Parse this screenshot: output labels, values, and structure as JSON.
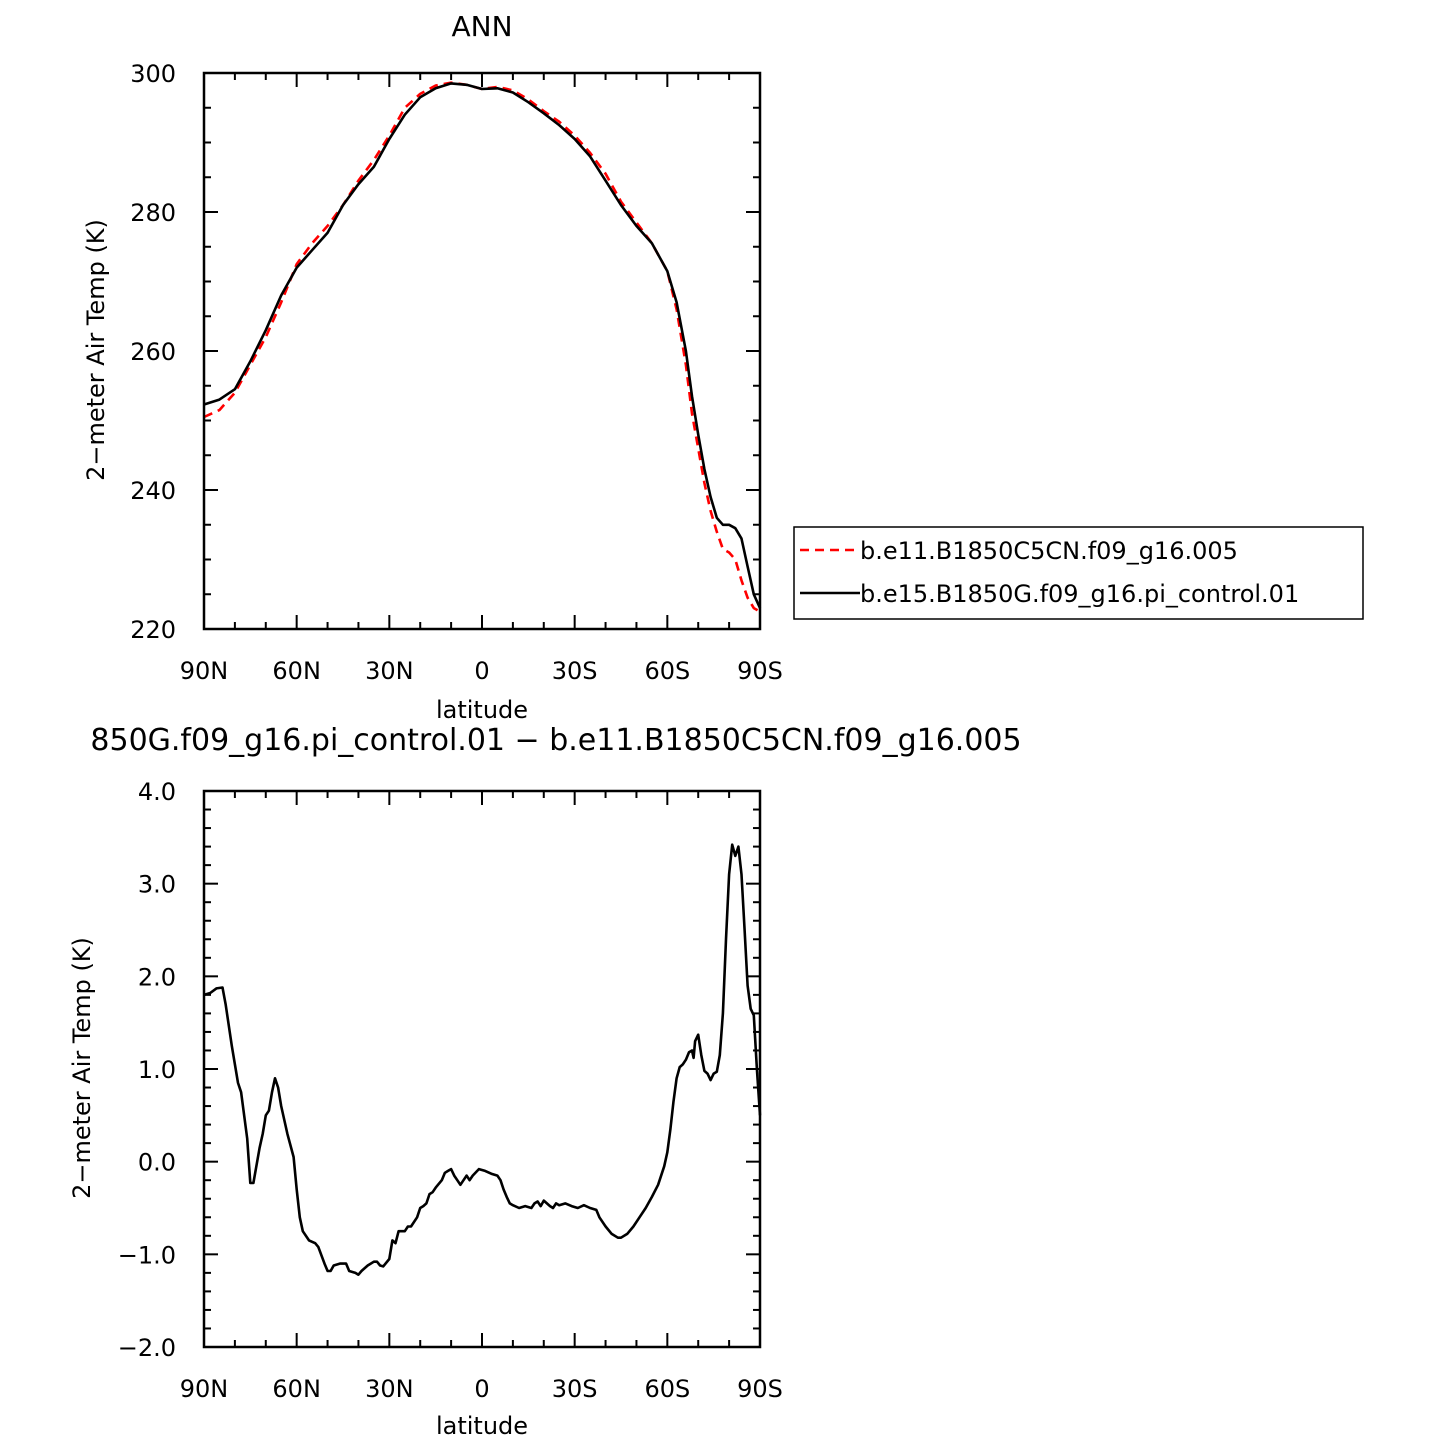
{
  "chart_data": [
    {
      "type": "line",
      "title": "ANN",
      "xlabel": "latitude",
      "ylabel": "2−meter Air Temp (K)",
      "xlim": [
        90,
        -90
      ],
      "ylim": [
        220,
        300
      ],
      "x_ticks": [
        {
          "value": 90,
          "label": "90N"
        },
        {
          "value": 60,
          "label": "60N"
        },
        {
          "value": 30,
          "label": "30N"
        },
        {
          "value": 0,
          "label": "0"
        },
        {
          "value": -30,
          "label": "30S"
        },
        {
          "value": -60,
          "label": "60S"
        },
        {
          "value": -90,
          "label": "90S"
        }
      ],
      "y_ticks": [
        {
          "value": 300,
          "label": "300"
        },
        {
          "value": 280,
          "label": "280"
        },
        {
          "value": 260,
          "label": "260"
        },
        {
          "value": 240,
          "label": "240"
        },
        {
          "value": 220,
          "label": "220"
        }
      ],
      "legend_position": "right",
      "series": [
        {
          "name": "b.e11.B1850C5CN.f09_g16.005",
          "color": "#ff0000",
          "style": "dashed",
          "points": [
            [
              90,
              250.5
            ],
            [
              85,
              251.5
            ],
            [
              80,
              254
            ],
            [
              75,
              258
            ],
            [
              70,
              262
            ],
            [
              65,
              267
            ],
            [
              60,
              272.5
            ],
            [
              55,
              275.5
            ],
            [
              50,
              278
            ],
            [
              45,
              281
            ],
            [
              40,
              284.5
            ],
            [
              35,
              287.5
            ],
            [
              30,
              291
            ],
            [
              25,
              295
            ],
            [
              20,
              297
            ],
            [
              15,
              298.2
            ],
            [
              10,
              298.6
            ],
            [
              5,
              298.3
            ],
            [
              0,
              297.7
            ],
            [
              -5,
              298
            ],
            [
              -10,
              297.5
            ],
            [
              -15,
              296.2
            ],
            [
              -20,
              294.5
            ],
            [
              -25,
              293
            ],
            [
              -30,
              291
            ],
            [
              -35,
              288.5
            ],
            [
              -40,
              285.5
            ],
            [
              -45,
              281.5
            ],
            [
              -50,
              278.5
            ],
            [
              -55,
              275.5
            ],
            [
              -60,
              271.5
            ],
            [
              -63,
              266
            ],
            [
              -66,
              258
            ],
            [
              -68,
              251
            ],
            [
              -70,
              246
            ],
            [
              -72,
              241
            ],
            [
              -74,
              237
            ],
            [
              -76,
              234
            ],
            [
              -78,
              231.5
            ],
            [
              -80,
              231
            ],
            [
              -82,
              230
            ],
            [
              -84,
              227
            ],
            [
              -86,
              224.5
            ],
            [
              -88,
              223
            ],
            [
              -90,
              222.5
            ]
          ]
        },
        {
          "name": "b.e15.B1850G.f09_g16.pi_control.01",
          "color": "#000000",
          "style": "solid",
          "points": [
            [
              90,
              252.3
            ],
            [
              85,
              253
            ],
            [
              80,
              254.5
            ],
            [
              75,
              258.5
            ],
            [
              70,
              263
            ],
            [
              65,
              268
            ],
            [
              60,
              272
            ],
            [
              55,
              274.5
            ],
            [
              50,
              277
            ],
            [
              45,
              281
            ],
            [
              40,
              284
            ],
            [
              35,
              286.5
            ],
            [
              30,
              290.5
            ],
            [
              25,
              294
            ],
            [
              20,
              296.5
            ],
            [
              15,
              297.8
            ],
            [
              10,
              298.5
            ],
            [
              5,
              298.3
            ],
            [
              0,
              297.7
            ],
            [
              -5,
              297.8
            ],
            [
              -10,
              297.2
            ],
            [
              -15,
              295.8
            ],
            [
              -20,
              294.2
            ],
            [
              -25,
              292.5
            ],
            [
              -30,
              290.5
            ],
            [
              -35,
              288
            ],
            [
              -40,
              284.5
            ],
            [
              -45,
              281
            ],
            [
              -50,
              278
            ],
            [
              -55,
              275.5
            ],
            [
              -60,
              271.5
            ],
            [
              -63,
              267
            ],
            [
              -66,
              260
            ],
            [
              -68,
              253.5
            ],
            [
              -70,
              248
            ],
            [
              -72,
              243
            ],
            [
              -74,
              239
            ],
            [
              -76,
              236
            ],
            [
              -78,
              235
            ],
            [
              -80,
              235
            ],
            [
              -82,
              234.5
            ],
            [
              -84,
              233
            ],
            [
              -86,
              229
            ],
            [
              -88,
              225
            ],
            [
              -90,
              223
            ]
          ]
        }
      ]
    },
    {
      "type": "line",
      "title": "850G.f09_g16.pi_control.01 − b.e11.B1850C5CN.f09_g16.005",
      "xlabel": "latitude",
      "ylabel": "2−meter Air Temp (K)",
      "xlim": [
        90,
        -90
      ],
      "ylim": [
        -2.0,
        4.0
      ],
      "x_ticks": [
        {
          "value": 90,
          "label": "90N"
        },
        {
          "value": 60,
          "label": "60N"
        },
        {
          "value": 30,
          "label": "30N"
        },
        {
          "value": 0,
          "label": "0"
        },
        {
          "value": -30,
          "label": "30S"
        },
        {
          "value": -60,
          "label": "60S"
        },
        {
          "value": -90,
          "label": "90S"
        }
      ],
      "y_ticks": [
        {
          "value": 4.0,
          "label": "4.0"
        },
        {
          "value": 3.0,
          "label": "3.0"
        },
        {
          "value": 2.0,
          "label": "2.0"
        },
        {
          "value": 1.0,
          "label": "1.0"
        },
        {
          "value": 0.0,
          "label": "0.0"
        },
        {
          "value": -1.0,
          "label": "−1.0"
        },
        {
          "value": -2.0,
          "label": "−2.0"
        }
      ],
      "series": [
        {
          "color": "#000000",
          "style": "solid",
          "points": [
            [
              90,
              1.8
            ],
            [
              88,
              1.82
            ],
            [
              86,
              1.87
            ],
            [
              84,
              1.88
            ],
            [
              83,
              1.7
            ],
            [
              81,
              1.25
            ],
            [
              80,
              1.05
            ],
            [
              79,
              0.85
            ],
            [
              78,
              0.75
            ],
            [
              76,
              0.25
            ],
            [
              75,
              -0.23
            ],
            [
              74,
              -0.23
            ],
            [
              72,
              0.15
            ],
            [
              71,
              0.3
            ],
            [
              70,
              0.5
            ],
            [
              69,
              0.55
            ],
            [
              68,
              0.75
            ],
            [
              67,
              0.9
            ],
            [
              66,
              0.8
            ],
            [
              65,
              0.6
            ],
            [
              63,
              0.3
            ],
            [
              61,
              0.05
            ],
            [
              60,
              -0.3
            ],
            [
              59,
              -0.6
            ],
            [
              58,
              -0.75
            ],
            [
              56,
              -0.85
            ],
            [
              54,
              -0.88
            ],
            [
              53,
              -0.92
            ],
            [
              51,
              -1.1
            ],
            [
              50,
              -1.18
            ],
            [
              49,
              -1.18
            ],
            [
              48,
              -1.12
            ],
            [
              46,
              -1.1
            ],
            [
              44,
              -1.1
            ],
            [
              43,
              -1.18
            ],
            [
              41,
              -1.2
            ],
            [
              40,
              -1.22
            ],
            [
              39,
              -1.18
            ],
            [
              37,
              -1.12
            ],
            [
              35,
              -1.08
            ],
            [
              34,
              -1.08
            ],
            [
              33,
              -1.12
            ],
            [
              32,
              -1.13
            ],
            [
              30,
              -1.05
            ],
            [
              29,
              -0.85
            ],
            [
              28,
              -0.88
            ],
            [
              27,
              -0.75
            ],
            [
              25,
              -0.75
            ],
            [
              24,
              -0.7
            ],
            [
              23,
              -0.7
            ],
            [
              21,
              -0.6
            ],
            [
              20,
              -0.5
            ],
            [
              19,
              -0.48
            ],
            [
              18,
              -0.45
            ],
            [
              17,
              -0.35
            ],
            [
              16,
              -0.33
            ],
            [
              15,
              -0.28
            ],
            [
              13,
              -0.2
            ],
            [
              12,
              -0.12
            ],
            [
              11,
              -0.1
            ],
            [
              10,
              -0.08
            ],
            [
              9,
              -0.15
            ],
            [
              8,
              -0.2
            ],
            [
              7,
              -0.25
            ],
            [
              6,
              -0.2
            ],
            [
              5,
              -0.15
            ],
            [
              4,
              -0.2
            ],
            [
              3,
              -0.15
            ],
            [
              1,
              -0.08
            ],
            [
              -1,
              -0.1
            ],
            [
              -3,
              -0.13
            ],
            [
              -5,
              -0.15
            ],
            [
              -6,
              -0.2
            ],
            [
              -7,
              -0.3
            ],
            [
              -8,
              -0.38
            ],
            [
              -9,
              -0.45
            ],
            [
              -10,
              -0.47
            ],
            [
              -12,
              -0.5
            ],
            [
              -14,
              -0.48
            ],
            [
              -16,
              -0.5
            ],
            [
              -17,
              -0.45
            ],
            [
              -18,
              -0.43
            ],
            [
              -19,
              -0.48
            ],
            [
              -20,
              -0.42
            ],
            [
              -21,
              -0.45
            ],
            [
              -22,
              -0.48
            ],
            [
              -23,
              -0.5
            ],
            [
              -24,
              -0.45
            ],
            [
              -25,
              -0.47
            ],
            [
              -27,
              -0.45
            ],
            [
              -29,
              -0.48
            ],
            [
              -31,
              -0.5
            ],
            [
              -33,
              -0.47
            ],
            [
              -35,
              -0.5
            ],
            [
              -37,
              -0.52
            ],
            [
              -38,
              -0.6
            ],
            [
              -40,
              -0.7
            ],
            [
              -42,
              -0.78
            ],
            [
              -44,
              -0.82
            ],
            [
              -45,
              -0.82
            ],
            [
              -47,
              -0.78
            ],
            [
              -49,
              -0.7
            ],
            [
              -51,
              -0.6
            ],
            [
              -53,
              -0.5
            ],
            [
              -55,
              -0.38
            ],
            [
              -57,
              -0.25
            ],
            [
              -59,
              -0.05
            ],
            [
              -60,
              0.1
            ],
            [
              -61,
              0.35
            ],
            [
              -62,
              0.65
            ],
            [
              -63,
              0.9
            ],
            [
              -64,
              1.02
            ],
            [
              -65,
              1.05
            ],
            [
              -66,
              1.1
            ],
            [
              -67,
              1.18
            ],
            [
              -68,
              1.2
            ],
            [
              -68.5,
              1.12
            ],
            [
              -69,
              1.3
            ],
            [
              -70,
              1.37
            ],
            [
              -71,
              1.15
            ],
            [
              -72,
              0.98
            ],
            [
              -73,
              0.95
            ],
            [
              -74,
              0.88
            ],
            [
              -75,
              0.95
            ],
            [
              -76,
              0.97
            ],
            [
              -77,
              1.15
            ],
            [
              -78,
              1.6
            ],
            [
              -79,
              2.4
            ],
            [
              -80,
              3.1
            ],
            [
              -81,
              3.42
            ],
            [
              -82,
              3.3
            ],
            [
              -83,
              3.4
            ],
            [
              -84,
              3.1
            ],
            [
              -85,
              2.5
            ],
            [
              -86,
              1.9
            ],
            [
              -87,
              1.65
            ],
            [
              -88,
              1.58
            ],
            [
              -89,
              1.0
            ],
            [
              -90,
              0.5
            ]
          ]
        }
      ]
    }
  ]
}
